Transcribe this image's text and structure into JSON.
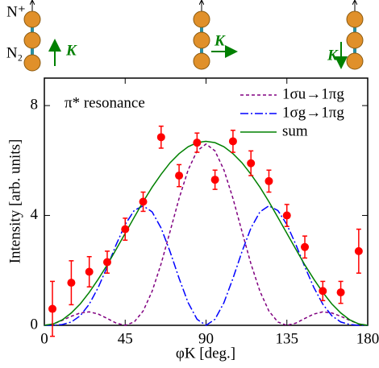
{
  "chart_data": {
    "type": "line",
    "x_label": "φK [deg.]",
    "y_label": "Intensity [arb. units]",
    "annotation": "π* resonance",
    "icon_labels": {
      "ion": "N⁺",
      "molecule": "N₂",
      "vector": "K"
    },
    "xlim": [
      0,
      180
    ],
    "xticks": [
      0,
      45,
      90,
      135,
      180
    ],
    "ylim": [
      0,
      9
    ],
    "yticks": [
      0,
      4,
      8
    ],
    "legend": "upper right",
    "series": [
      {
        "name": "1σu→1πg",
        "color": "#800080",
        "style": "dashed",
        "x": [
          0,
          5,
          10,
          15,
          20,
          25,
          30,
          35,
          40,
          45,
          50,
          55,
          60,
          65,
          70,
          75,
          80,
          85,
          90,
          95,
          100,
          105,
          110,
          115,
          120,
          125,
          130,
          135,
          140,
          145,
          150,
          155,
          160,
          165,
          170,
          175,
          180
        ],
        "values": [
          0,
          0.05,
          0.18,
          0.33,
          0.45,
          0.49,
          0.41,
          0.25,
          0.08,
          0,
          0.12,
          0.52,
          1.24,
          2.24,
          3.42,
          4.62,
          5.65,
          6.35,
          6.6,
          6.35,
          5.65,
          4.62,
          3.42,
          2.24,
          1.24,
          0.52,
          0.12,
          0,
          0.08,
          0.25,
          0.41,
          0.49,
          0.45,
          0.33,
          0.18,
          0.05,
          0
        ]
      },
      {
        "name": "1σg→1πg",
        "color": "#0000ff",
        "style": "dashdot",
        "x": [
          0,
          5,
          10,
          15,
          20,
          25,
          30,
          35,
          40,
          45,
          50,
          55,
          60,
          65,
          70,
          75,
          80,
          85,
          90,
          95,
          100,
          105,
          110,
          115,
          120,
          125,
          130,
          135,
          140,
          145,
          150,
          155,
          160,
          165,
          170,
          175,
          180
        ],
        "values": [
          0,
          0,
          0.03,
          0.12,
          0.35,
          0.77,
          1.38,
          2.13,
          2.94,
          3.67,
          4.18,
          4.35,
          4.13,
          3.54,
          2.68,
          1.71,
          0.83,
          0.22,
          0,
          0.22,
          0.83,
          1.71,
          2.68,
          3.54,
          4.13,
          4.35,
          4.18,
          3.67,
          2.94,
          2.13,
          1.38,
          0.77,
          0.35,
          0.12,
          0.03,
          0,
          0
        ]
      },
      {
        "name": "sum",
        "color": "#008000",
        "style": "solid",
        "x": [
          0,
          5,
          10,
          15,
          20,
          25,
          30,
          35,
          40,
          45,
          50,
          55,
          60,
          65,
          70,
          75,
          80,
          85,
          90,
          95,
          100,
          105,
          110,
          115,
          120,
          125,
          130,
          135,
          140,
          145,
          150,
          155,
          160,
          165,
          170,
          175,
          180
        ],
        "values": [
          0,
          0.05,
          0.2,
          0.45,
          0.78,
          1.2,
          1.68,
          2.2,
          2.77,
          3.35,
          3.93,
          4.5,
          5.03,
          5.5,
          5.92,
          6.25,
          6.5,
          6.65,
          6.7,
          6.65,
          6.5,
          6.25,
          5.92,
          5.5,
          5.03,
          4.5,
          3.93,
          3.35,
          2.77,
          2.2,
          1.68,
          1.2,
          0.78,
          0.45,
          0.2,
          0.05,
          0
        ]
      },
      {
        "type": "scatter",
        "color": "#ff0000",
        "x": [
          4.5,
          15,
          25,
          35,
          45,
          55,
          65,
          75,
          85,
          95,
          105,
          115,
          125,
          135,
          145,
          155,
          165,
          175
        ],
        "values": [
          0.6,
          1.55,
          1.95,
          2.3,
          3.5,
          4.5,
          6.85,
          5.45,
          6.65,
          5.3,
          6.7,
          5.9,
          5.25,
          4.0,
          2.85,
          1.25,
          1.2,
          2.7
        ],
        "errors": [
          1.0,
          0.8,
          0.55,
          0.4,
          0.4,
          0.35,
          0.4,
          0.4,
          0.35,
          0.35,
          0.4,
          0.45,
          0.4,
          0.4,
          0.4,
          0.35,
          0.4,
          0.8
        ]
      }
    ]
  }
}
